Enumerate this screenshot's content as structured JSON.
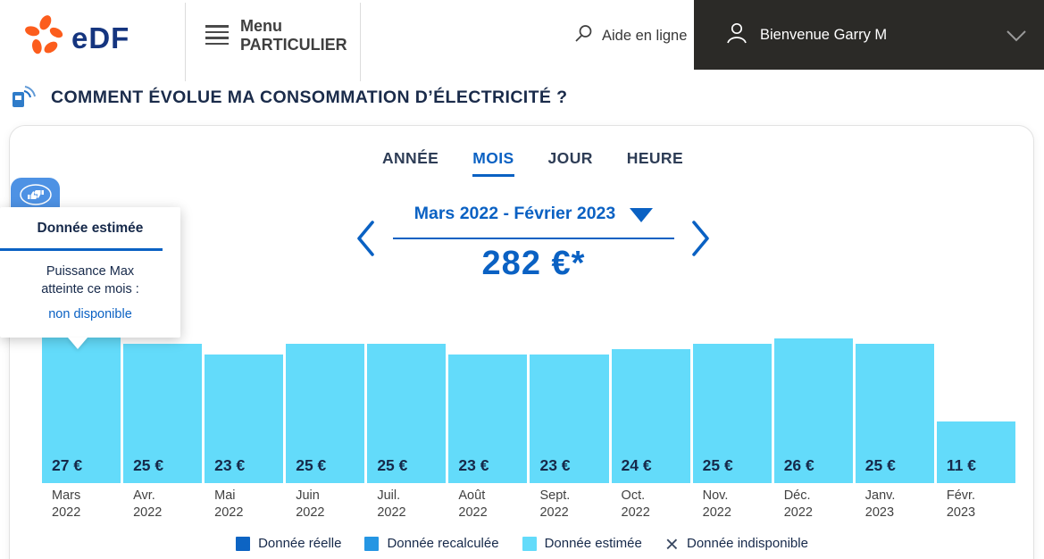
{
  "colors": {
    "accent_blue": "#0a61c3",
    "navy_text": "#16294a",
    "edf_orange": "#fc5d1d",
    "edf_blue": "#15357f",
    "header_dark_bg": "#2b2a27",
    "bar_estimated": "#63dbfa"
  },
  "header": {
    "logo_text": "eDF",
    "menu_line1": "Menu",
    "menu_line2": "PARTICULIER",
    "help_label": "Aide en ligne",
    "welcome_label": "Bienvenue Garry M"
  },
  "page_title": "COMMENT ÉVOLUE MA CONSOMMATION D’ÉLECTRICITÉ ?",
  "tabs": [
    {
      "label": "ANNÉE",
      "active": false
    },
    {
      "label": "MOIS",
      "active": true
    },
    {
      "label": "JOUR",
      "active": false
    },
    {
      "label": "HEURE",
      "active": false
    }
  ],
  "period": {
    "range_label": "Mars 2022 - Février 2023",
    "total": "282 €*"
  },
  "tooltip": {
    "title": "Donnée estimée",
    "body_line1": "Puissance Max",
    "body_line2": "atteinte ce mois :",
    "link_label": "non disponible"
  },
  "chart_data": {
    "type": "bar",
    "categories": [
      "Mars 2022",
      "Avr. 2022",
      "Mai 2022",
      "Juin 2022",
      "Juil. 2022",
      "Août 2022",
      "Sept. 2022",
      "Oct. 2022",
      "Nov. 2022",
      "Déc. 2022",
      "Janv. 2023",
      "Févr. 2023"
    ],
    "values": [
      27,
      25,
      23,
      25,
      25,
      23,
      23,
      24,
      25,
      26,
      25,
      11
    ],
    "unit": "€",
    "series_name": "Donnée estimée",
    "bar_color": "#63dbfa",
    "ylim": [
      0,
      28
    ],
    "grid": false,
    "legend_position": "bottom"
  },
  "legend": {
    "items": [
      {
        "label": "Donnée réelle",
        "swatch": "square",
        "color": "#0d64c3"
      },
      {
        "label": "Donnée recalculée",
        "swatch": "square",
        "color": "#2596e3"
      },
      {
        "label": "Donnée estimée",
        "swatch": "square",
        "color": "#63dbfa"
      },
      {
        "label": "Donnée indisponible",
        "swatch": "x",
        "color": "#3b4a63"
      }
    ]
  }
}
